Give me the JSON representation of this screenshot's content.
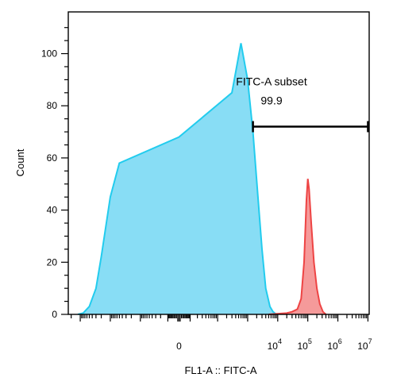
{
  "chart_data": {
    "type": "area",
    "title": "",
    "xlabel": "FL1-A :: FITC-A",
    "ylabel": "Count",
    "ylim": [
      0,
      116
    ],
    "y_ticks": [
      0,
      20,
      40,
      60,
      80,
      100
    ],
    "x_scale": "biexponential",
    "x_tick_labels": [
      {
        "value": 0,
        "text": "0",
        "base": "0",
        "exp": ""
      },
      {
        "value": 10000,
        "text": "10^4",
        "base": "10",
        "exp": "4"
      },
      {
        "value": 100000,
        "text": "10^5",
        "base": "10",
        "exp": "5"
      },
      {
        "value": 1000000,
        "text": "10^6",
        "base": "10",
        "exp": "6"
      },
      {
        "value": 10000000,
        "text": "10^7",
        "base": "10",
        "exp": "7"
      }
    ],
    "series": [
      {
        "color": "#22ccee",
        "fill": "#88ddf5",
        "x": [
          -12000,
          -8000,
          -5000,
          -3000,
          -2000,
          -1000,
          -500,
          0,
          300,
          600,
          1000,
          1500,
          2200,
          3000,
          4000,
          5500,
          7000,
          9000
        ],
        "y": [
          0,
          0.5,
          3,
          10,
          22,
          45,
          58,
          68,
          85,
          104,
          90,
          70,
          45,
          25,
          10,
          3,
          1,
          0
        ]
      },
      {
        "color": "#ee4444",
        "fill": "#f59a9a",
        "x": [
          5000,
          20000,
          30000,
          45000,
          60000,
          75000,
          90000,
          100000,
          110000,
          130000,
          160000,
          200000,
          250000,
          320000,
          400000
        ],
        "y": [
          0,
          0.5,
          1,
          2,
          6,
          20,
          44,
          52,
          48,
          35,
          20,
          10,
          4,
          1,
          0
        ]
      }
    ],
    "gate": {
      "name": "FITC-A subset",
      "value": "99.9",
      "x_start": 1500,
      "x_end": 10000000,
      "y_level": 72
    }
  }
}
